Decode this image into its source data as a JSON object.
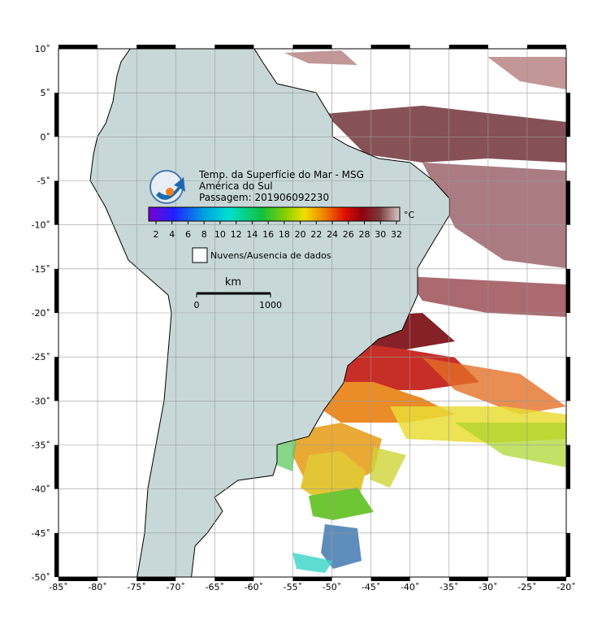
{
  "map": {
    "title_lines": [
      "Temp. da Superfície do Mar - MSG",
      "América do Sul",
      "Passagem: 201906092230"
    ],
    "colorbar": {
      "unit": "°C",
      "ticks": [
        2,
        4,
        6,
        8,
        10,
        12,
        14,
        16,
        18,
        20,
        22,
        24,
        26,
        28,
        30,
        32
      ]
    },
    "legend": "Nuvens/Ausencia de dados",
    "scale_bar": {
      "unit": "km",
      "ticks": [
        0,
        1000
      ]
    },
    "lon_ticks": [
      {
        "value": -85,
        "label": "-85˚"
      },
      {
        "value": -80,
        "label": "-80˚"
      },
      {
        "value": -75,
        "label": "-75˚"
      },
      {
        "value": -70,
        "label": "-70˚"
      },
      {
        "value": -65,
        "label": "-65˚"
      },
      {
        "value": -60,
        "label": "-60˚"
      },
      {
        "value": -55,
        "label": "-55˚"
      },
      {
        "value": -50,
        "label": "-50˚"
      },
      {
        "value": -45,
        "label": "-45˚"
      },
      {
        "value": -40,
        "label": "-40˚"
      },
      {
        "value": -35,
        "label": "-35˚"
      },
      {
        "value": -30,
        "label": "-30˚"
      },
      {
        "value": -25,
        "label": "-25˚"
      },
      {
        "value": -20,
        "label": "-20˚"
      }
    ],
    "lat_ticks": [
      {
        "value": 10,
        "label": "10˚"
      },
      {
        "value": 5,
        "label": "5˚"
      },
      {
        "value": 0,
        "label": "0˚"
      },
      {
        "value": -5,
        "label": "-5˚"
      },
      {
        "value": -10,
        "label": "-10˚"
      },
      {
        "value": -15,
        "label": "-15˚"
      },
      {
        "value": -20,
        "label": "-20˚"
      },
      {
        "value": -25,
        "label": "-25˚"
      },
      {
        "value": -30,
        "label": "-30˚"
      },
      {
        "value": -35,
        "label": "-35˚"
      },
      {
        "value": -40,
        "label": "-40˚"
      },
      {
        "value": -45,
        "label": "-45˚"
      },
      {
        "value": -50,
        "label": "-50˚"
      }
    ]
  }
}
